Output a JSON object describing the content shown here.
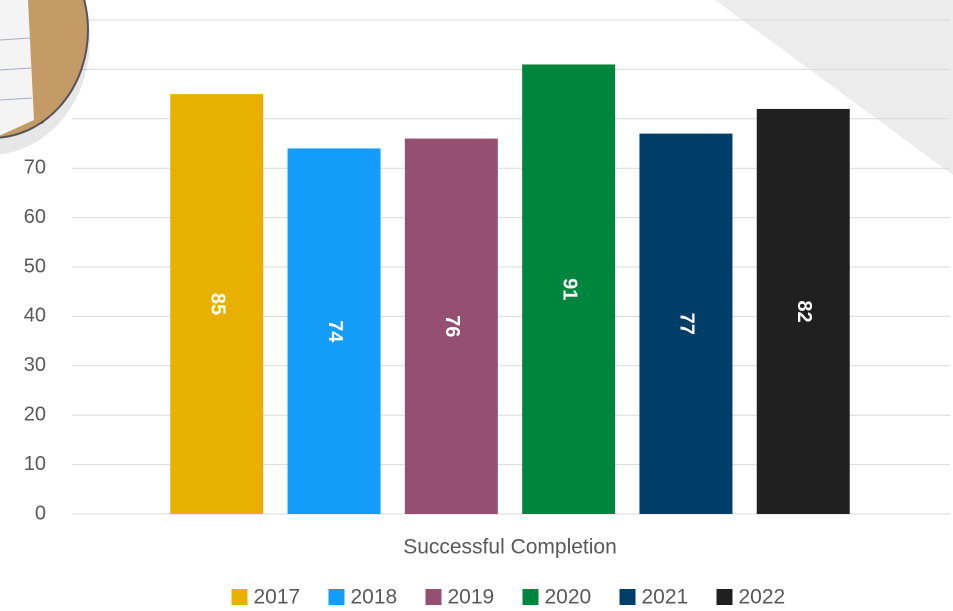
{
  "chart_data": {
    "type": "bar",
    "categories": [
      "Successful Completion"
    ],
    "series": [
      {
        "name": "2017",
        "color": "#e8b000",
        "values": [
          85
        ]
      },
      {
        "name": "2018",
        "color": "#139cf9",
        "values": [
          74
        ]
      },
      {
        "name": "2019",
        "color": "#955071",
        "values": [
          76
        ]
      },
      {
        "name": "2020",
        "color": "#00853e",
        "values": [
          91
        ]
      },
      {
        "name": "2021",
        "color": "#003d69",
        "values": [
          77
        ]
      },
      {
        "name": "2022",
        "color": "#202020",
        "values": [
          82
        ]
      }
    ],
    "ylim": [
      0,
      100
    ],
    "yticks": [
      0,
      10,
      20,
      30,
      40,
      50,
      60,
      70,
      80,
      90,
      100
    ],
    "grid": true,
    "legend": "bottom",
    "data_labels": true
  }
}
